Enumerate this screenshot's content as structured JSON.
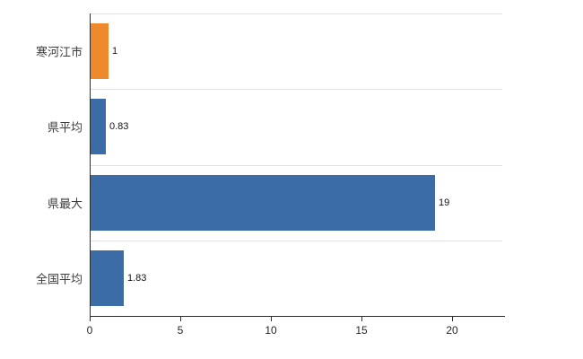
{
  "chart_data": {
    "type": "bar",
    "orientation": "horizontal",
    "title": "",
    "xlabel": "",
    "ylabel": "",
    "categories": [
      "寒河江市",
      "県平均",
      "県最大",
      "全国平均"
    ],
    "values": [
      1,
      0.83,
      19,
      1.83
    ],
    "value_labels": [
      "1",
      "0.83",
      "19",
      "1.83"
    ],
    "bar_colors": [
      "#EE8A2E",
      "#3C6CA6",
      "#3C6CA6",
      "#3C6CA6"
    ],
    "x_ticks": [
      "0",
      "5",
      "10",
      "15",
      "20"
    ],
    "x_tick_values": [
      0,
      5,
      10,
      15,
      20
    ],
    "xlim": [
      0,
      22.8
    ],
    "grid": "horizontal lines at category band boundaries, light gray",
    "legend": "none",
    "colors": {
      "bar_blue": "#3C6CA6",
      "bar_orange": "#EE8A2E",
      "gridline": "#e2e2e2",
      "axis": "#2b2b2b",
      "background": "#ffffff"
    }
  }
}
